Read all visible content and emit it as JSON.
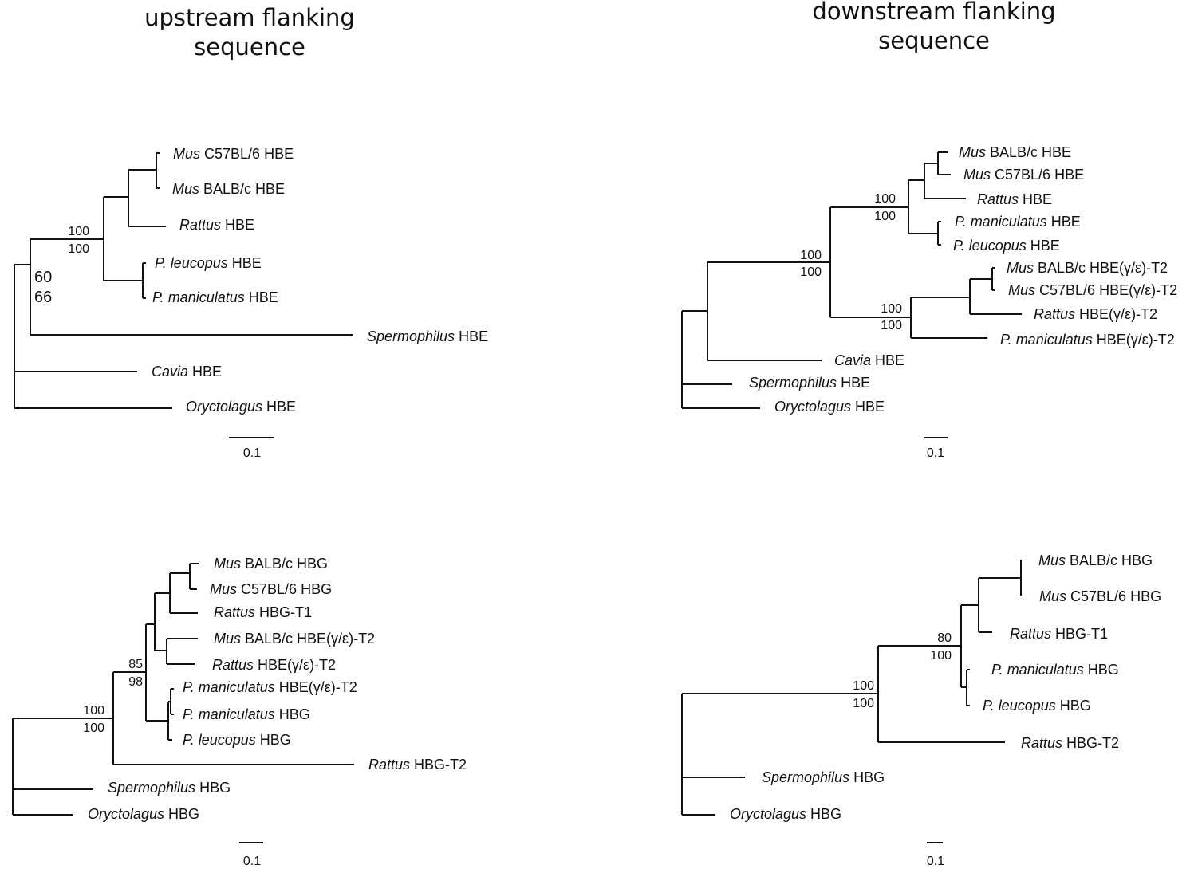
{
  "headings": {
    "left": "upstream flanking\nsequence",
    "right": "downstream flanking\nsequence"
  },
  "panels": [
    {
      "id": "upstream-hbe",
      "scale_label": "0.1",
      "leaves": [
        {
          "genus": "Mus",
          "rest": " C57BL/6 HBE"
        },
        {
          "genus": "Mus",
          "rest": " BALB/c HBE"
        },
        {
          "genus": "Rattus",
          "rest": " HBE"
        },
        {
          "genus": "P. leucopus",
          "rest": " HBE"
        },
        {
          "genus": "P. maniculatus",
          "rest": " HBE"
        },
        {
          "genus": "Spermophilus",
          "rest": " HBE"
        },
        {
          "genus": "Cavia",
          "rest": " HBE"
        },
        {
          "genus": "Oryctolagus",
          "rest": " HBE"
        }
      ],
      "supports": [
        {
          "top": "100",
          "bottom": "100"
        },
        {
          "top": "60",
          "bottom": "66"
        }
      ]
    },
    {
      "id": "downstream-hbe",
      "scale_label": "0.1",
      "leaves": [
        {
          "genus": "Mus",
          "rest": " BALB/c HBE"
        },
        {
          "genus": "Mus",
          "rest": " C57BL/6 HBE"
        },
        {
          "genus": "Rattus",
          "rest": " HBE"
        },
        {
          "genus": "P. maniculatus",
          "rest": " HBE"
        },
        {
          "genus": "P. leucopus",
          "rest": " HBE"
        },
        {
          "genus": "Mus",
          "rest": " BALB/c HBE(γ/ε)-T2"
        },
        {
          "genus": "Mus",
          "rest": " C57BL/6 HBE(γ/ε)-T2"
        },
        {
          "genus": "Rattus",
          "rest": " HBE(γ/ε)-T2"
        },
        {
          "genus": "P. maniculatus",
          "rest": " HBE(γ/ε)-T2"
        },
        {
          "genus": "Cavia",
          "rest": " HBE"
        },
        {
          "genus": "Spermophilus",
          "rest": " HBE"
        },
        {
          "genus": "Oryctolagus",
          "rest": " HBE"
        }
      ],
      "supports": [
        {
          "top": "100",
          "bottom": "100"
        },
        {
          "top": "100",
          "bottom": "100"
        },
        {
          "top": "100",
          "bottom": "100"
        }
      ]
    },
    {
      "id": "upstream-hbg",
      "scale_label": "0.1",
      "leaves": [
        {
          "genus": "Mus",
          "rest": " BALB/c HBG"
        },
        {
          "genus": "Mus",
          "rest": " C57BL/6 HBG"
        },
        {
          "genus": "Rattus",
          "rest": " HBG-T1"
        },
        {
          "genus": "Mus",
          "rest": " BALB/c HBE(γ/ε)-T2"
        },
        {
          "genus": "Rattus",
          "rest": " HBE(γ/ε)-T2"
        },
        {
          "genus": "P. maniculatus",
          "rest": " HBE(γ/ε)-T2"
        },
        {
          "genus": "P. maniculatus",
          "rest": " HBG"
        },
        {
          "genus": "P. leucopus",
          "rest": " HBG"
        },
        {
          "genus": "Rattus",
          "rest": " HBG-T2"
        },
        {
          "genus": "Spermophilus",
          "rest": " HBG"
        },
        {
          "genus": "Oryctolagus",
          "rest": " HBG"
        }
      ],
      "supports": [
        {
          "top": "85",
          "bottom": "98"
        },
        {
          "top": "100",
          "bottom": "100"
        }
      ]
    },
    {
      "id": "downstream-hbg",
      "scale_label": "0.1",
      "leaves": [
        {
          "genus": "Mus",
          "rest": " BALB/c HBG"
        },
        {
          "genus": "Mus",
          "rest": " C57BL/6 HBG"
        },
        {
          "genus": "Rattus",
          "rest": " HBG-T1"
        },
        {
          "genus": "P. maniculatus",
          "rest": " HBG"
        },
        {
          "genus": "P. leucopus",
          "rest": " HBG"
        },
        {
          "genus": "Rattus",
          "rest": " HBG-T2"
        },
        {
          "genus": "Spermophilus",
          "rest": " HBG"
        },
        {
          "genus": "Oryctolagus",
          "rest": " HBG"
        }
      ],
      "supports": [
        {
          "top": "80",
          "bottom": "100"
        },
        {
          "top": "100",
          "bottom": "100"
        }
      ]
    }
  ]
}
